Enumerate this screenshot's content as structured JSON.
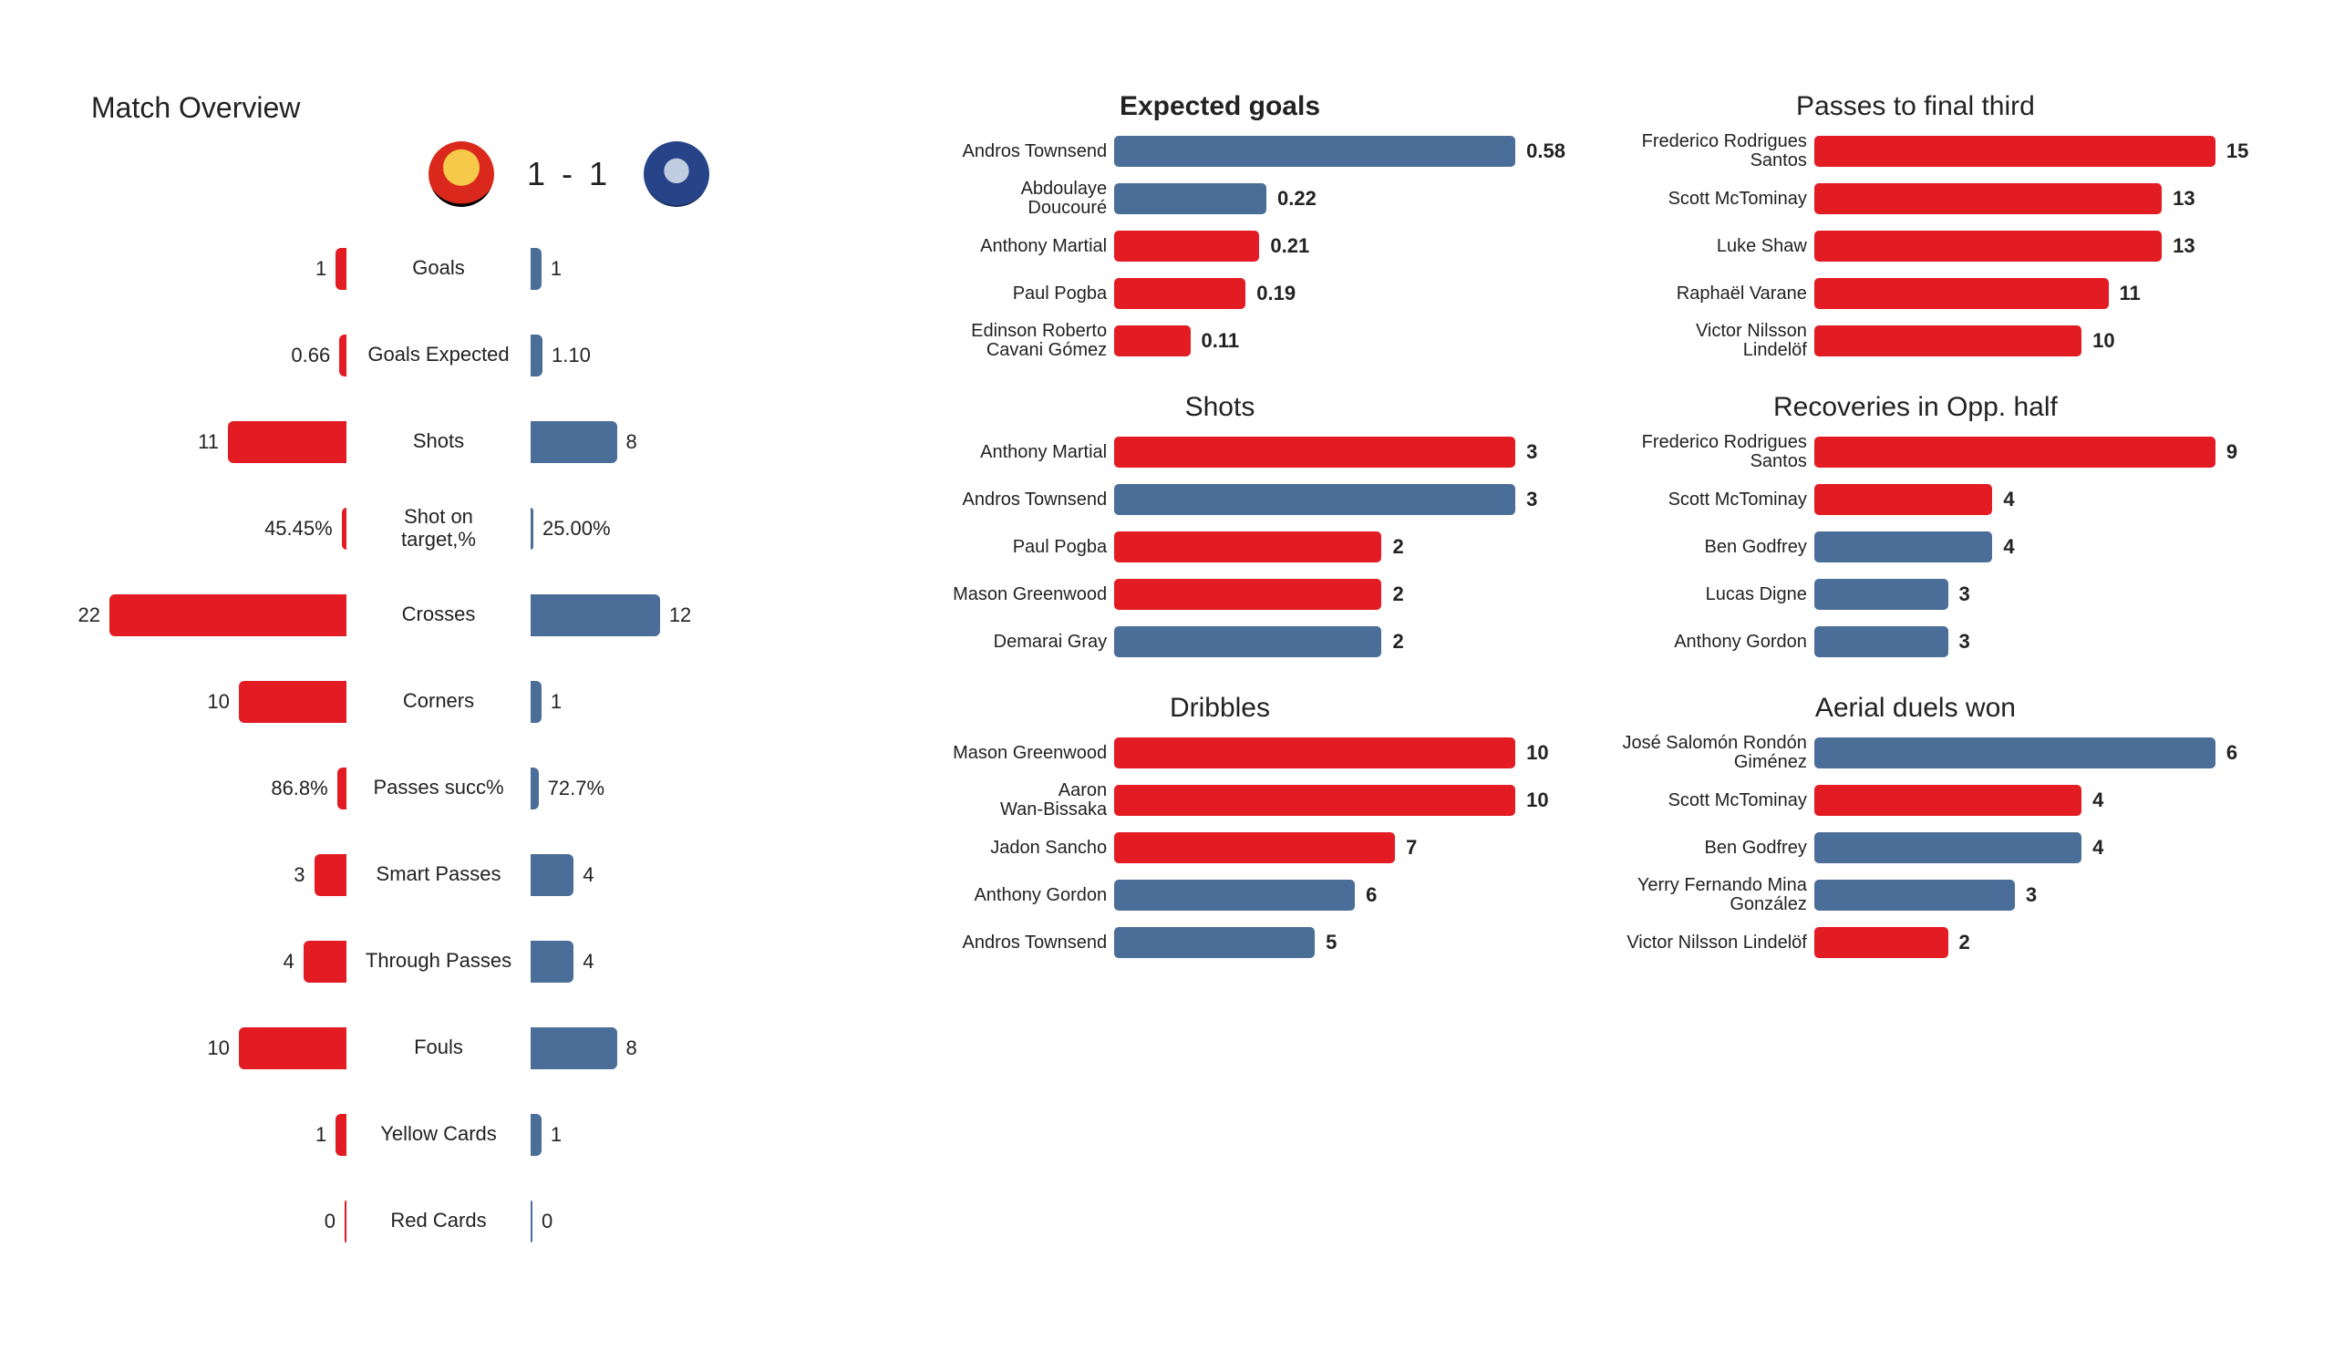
{
  "colors": {
    "home": "#e31b23",
    "away": "#4a6e98",
    "text": "#222222",
    "bg": "#ffffff"
  },
  "overview": {
    "title": "Match Overview",
    "score": "1 - 1",
    "bar_max": 22,
    "rows": [
      {
        "label": "Goals",
        "home": "1",
        "away": "1",
        "hw": 1,
        "aw": 1
      },
      {
        "label": "Goals Expected",
        "home": "0.66",
        "away": "1.10",
        "hw": 0.66,
        "aw": 1.1
      },
      {
        "label": "Shots",
        "home": "11",
        "away": "8",
        "hw": 11,
        "aw": 8
      },
      {
        "label": "Shot on\ntarget,%",
        "home": "45.45%",
        "away": "25.00%",
        "hw": 0.45,
        "aw": 0.25
      },
      {
        "label": "Crosses",
        "home": "22",
        "away": "12",
        "hw": 22,
        "aw": 12
      },
      {
        "label": "Corners",
        "home": "10",
        "away": "1",
        "hw": 10,
        "aw": 1
      },
      {
        "label": "Passes succ%",
        "home": "86.8%",
        "away": "72.7%",
        "hw": 0.87,
        "aw": 0.73
      },
      {
        "label": "Smart Passes",
        "home": "3",
        "away": "4",
        "hw": 3,
        "aw": 4
      },
      {
        "label": "Through Passes",
        "home": "4",
        "away": "4",
        "hw": 4,
        "aw": 4
      },
      {
        "label": "Fouls",
        "home": "10",
        "away": "8",
        "hw": 10,
        "aw": 8
      },
      {
        "label": "Yellow Cards",
        "home": "1",
        "away": "1",
        "hw": 1,
        "aw": 1
      },
      {
        "label": "Red Cards",
        "home": "0",
        "away": "0",
        "hw": 0,
        "aw": 0
      }
    ]
  },
  "playerCharts": {
    "middle": [
      {
        "title": "Expected goals",
        "title_bold": true,
        "max": 0.58,
        "rows": [
          {
            "name": "Andros Townsend",
            "val": "0.58",
            "w": 0.58,
            "team": "away"
          },
          {
            "name": "Abdoulaye\nDoucouré",
            "val": "0.22",
            "w": 0.22,
            "team": "away"
          },
          {
            "name": "Anthony Martial",
            "val": "0.21",
            "w": 0.21,
            "team": "home"
          },
          {
            "name": "Paul Pogba",
            "val": "0.19",
            "w": 0.19,
            "team": "home"
          },
          {
            "name": "Edinson Roberto\nCavani Gómez",
            "val": "0.11",
            "w": 0.11,
            "team": "home"
          }
        ]
      },
      {
        "title": "Shots",
        "title_bold": false,
        "max": 3,
        "rows": [
          {
            "name": "Anthony Martial",
            "val": "3",
            "w": 3,
            "team": "home"
          },
          {
            "name": "Andros Townsend",
            "val": "3",
            "w": 3,
            "team": "away"
          },
          {
            "name": "Paul Pogba",
            "val": "2",
            "w": 2,
            "team": "home"
          },
          {
            "name": "Mason Greenwood",
            "val": "2",
            "w": 2,
            "team": "home"
          },
          {
            "name": "Demarai Gray",
            "val": "2",
            "w": 2,
            "team": "away"
          }
        ]
      },
      {
        "title": "Dribbles",
        "title_bold": false,
        "max": 10,
        "rows": [
          {
            "name": "Mason Greenwood",
            "val": "10",
            "w": 10,
            "team": "home"
          },
          {
            "name": "Aaron\nWan-Bissaka",
            "val": "10",
            "w": 10,
            "team": "home"
          },
          {
            "name": "Jadon Sancho",
            "val": "7",
            "w": 7,
            "team": "home"
          },
          {
            "name": "Anthony Gordon",
            "val": "6",
            "w": 6,
            "team": "away"
          },
          {
            "name": "Andros Townsend",
            "val": "5",
            "w": 5,
            "team": "away"
          }
        ]
      }
    ],
    "right": [
      {
        "title": "Passes to final third",
        "title_bold": false,
        "max": 15,
        "rows": [
          {
            "name": "Frederico Rodrigues\nSantos",
            "val": "15",
            "w": 15,
            "team": "home"
          },
          {
            "name": "Scott McTominay",
            "val": "13",
            "w": 13,
            "team": "home"
          },
          {
            "name": "Luke Shaw",
            "val": "13",
            "w": 13,
            "team": "home"
          },
          {
            "name": "Raphaël Varane",
            "val": "11",
            "w": 11,
            "team": "home"
          },
          {
            "name": "Victor Nilsson\nLindelöf",
            "val": "10",
            "w": 10,
            "team": "home"
          }
        ]
      },
      {
        "title": "Recoveries in Opp. half",
        "title_bold": false,
        "max": 9,
        "rows": [
          {
            "name": "Frederico Rodrigues\nSantos",
            "val": "9",
            "w": 9,
            "team": "home"
          },
          {
            "name": "Scott McTominay",
            "val": "4",
            "w": 4,
            "team": "home"
          },
          {
            "name": "Ben Godfrey",
            "val": "4",
            "w": 4,
            "team": "away"
          },
          {
            "name": "Lucas Digne",
            "val": "3",
            "w": 3,
            "team": "away"
          },
          {
            "name": "Anthony Gordon",
            "val": "3",
            "w": 3,
            "team": "away"
          }
        ]
      },
      {
        "title": "Aerial duels won",
        "title_bold": false,
        "max": 6,
        "rows": [
          {
            "name": "José Salomón Rondón\nGiménez",
            "val": "6",
            "w": 6,
            "team": "away"
          },
          {
            "name": "Scott McTominay",
            "val": "4",
            "w": 4,
            "team": "home"
          },
          {
            "name": "Ben Godfrey",
            "val": "4",
            "w": 4,
            "team": "away"
          },
          {
            "name": "Yerry Fernando Mina\nGonzález",
            "val": "3",
            "w": 3,
            "team": "away"
          },
          {
            "name": "Victor Nilsson Lindelöf",
            "val": "2",
            "w": 2,
            "team": "home"
          }
        ]
      }
    ]
  }
}
